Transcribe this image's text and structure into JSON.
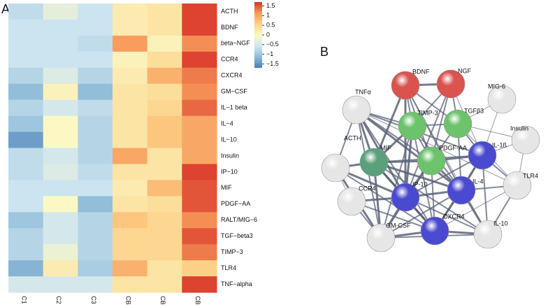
{
  "chart_data": {
    "type": "heatmap",
    "panel_label": "A",
    "rows": [
      "ACTH",
      "BDNF",
      "beta−NGF",
      "CCR4",
      "CXCR4",
      "GM−CSF",
      "IL−1 beta",
      "IL−4",
      "IL−10",
      "Insulin",
      "IP−10",
      "MIF",
      "PDGF−AA",
      "RALT/MIG−6",
      "TGF−beta3",
      "TIMP−3",
      "TLR4",
      "TNF−alpha"
    ],
    "columns": [
      "C1",
      "C2",
      "C3",
      "CB1",
      "CB2",
      "CB3"
    ],
    "values": [
      [
        -0.7,
        -0.3,
        -0.6,
        0.2,
        0.3,
        1.6
      ],
      [
        -0.6,
        -0.6,
        -0.6,
        0.2,
        0.3,
        1.6
      ],
      [
        -0.6,
        -0.6,
        -0.7,
        1.1,
        0.1,
        1.2
      ],
      [
        -0.6,
        -0.6,
        -0.6,
        0.1,
        0.4,
        1.6
      ],
      [
        -0.8,
        -0.4,
        -0.8,
        0.2,
        0.9,
        1.3
      ],
      [
        -1.1,
        0.1,
        -1.1,
        0.3,
        0.4,
        1.2
      ],
      [
        -0.8,
        -0.5,
        -0.7,
        0.3,
        0.5,
        1.4
      ],
      [
        -1.0,
        0.0,
        -0.8,
        0.3,
        0.7,
        1.0
      ],
      [
        -1.4,
        0.0,
        -0.8,
        0.3,
        0.7,
        1.0
      ],
      [
        -0.7,
        -0.5,
        -0.8,
        1.0,
        0.3,
        1.0
      ],
      [
        -0.7,
        -0.4,
        -0.7,
        0.3,
        0.3,
        1.6
      ],
      [
        -0.6,
        -0.6,
        -0.6,
        0.2,
        0.8,
        1.5
      ],
      [
        -0.6,
        0.0,
        -1.1,
        0.3,
        0.4,
        1.5
      ],
      [
        -1.0,
        -0.5,
        -0.8,
        0.7,
        0.5,
        1.2
      ],
      [
        -0.8,
        -0.5,
        -0.8,
        0.5,
        0.5,
        1.5
      ],
      [
        -0.8,
        -0.2,
        -0.8,
        0.5,
        0.5,
        1.3
      ],
      [
        -1.2,
        0.2,
        -0.9,
        0.9,
        0.3,
        0.6
      ],
      [
        -0.5,
        -0.5,
        -0.5,
        0.3,
        0.3,
        1.6
      ]
    ],
    "colors": [
      "#4a7ab7",
      "#8fbcd9",
      "#cfe6f0",
      "#fbf8c4",
      "#fdd38a",
      "#f89a5b",
      "#d73027"
    ],
    "zlim": [
      -1.7,
      1.7
    ],
    "zticks": [
      1.5,
      1,
      0.5,
      0,
      {
        "value": -0.5,
        "label": "−0.5"
      },
      {
        "value": -1,
        "label": "−1"
      },
      {
        "value": -1.5,
        "label": "−1.5"
      }
    ]
  },
  "network": {
    "panel_label": "B",
    "nodes": [
      {
        "label": "BDNF",
        "color": "#d9534f"
      },
      {
        "label": "NGF",
        "color": "#d9534f"
      },
      {
        "label": "TNFα",
        "color": "#e6e6e6"
      },
      {
        "label": "MIG-6",
        "color": "#e6e6e6"
      },
      {
        "label": "TIMP-3",
        "color": "#6cc36c"
      },
      {
        "label": "TGFβ3",
        "color": "#6cc36c"
      },
      {
        "label": "Insulin",
        "color": "#e6e6e6"
      },
      {
        "label": "ACTH",
        "color": "#e6e6e6"
      },
      {
        "label": "MIF",
        "color": "#5aa07a"
      },
      {
        "label": "PDGF-AA",
        "color": "#6cc36c"
      },
      {
        "label": "IL-1ß",
        "color": "#4a4ad0"
      },
      {
        "label": "TLR4",
        "color": "#e6e6e6"
      },
      {
        "label": "CCR4",
        "color": "#e6e6e6"
      },
      {
        "label": "IP-10",
        "color": "#4a4ad0"
      },
      {
        "label": "IL-4",
        "color": "#4a4ad0"
      },
      {
        "label": "CXCR4",
        "color": "#4a4ad0"
      },
      {
        "label": "GM-CSF",
        "color": "#e6e6e6"
      },
      {
        "label": "IL-10",
        "color": "#e6e6e6"
      }
    ]
  }
}
